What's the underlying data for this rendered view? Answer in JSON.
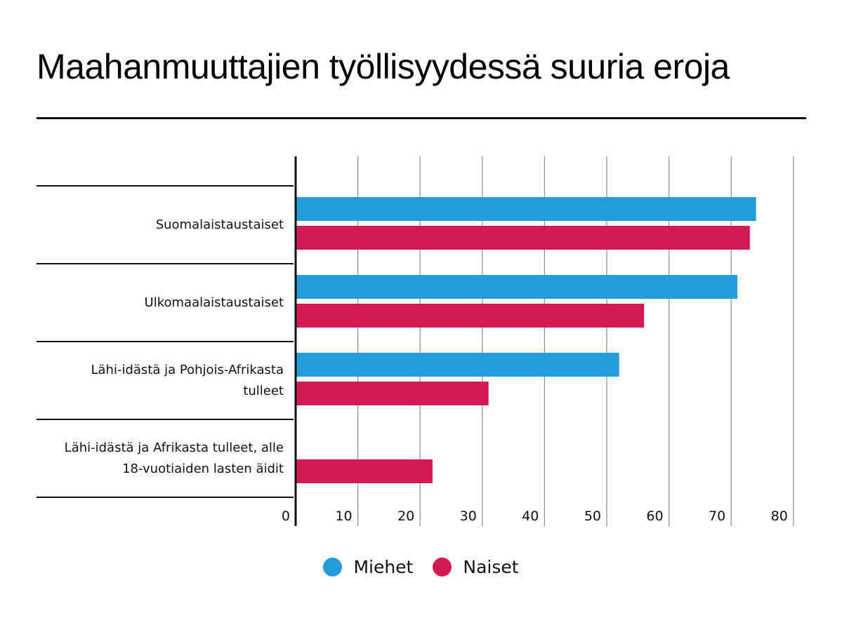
{
  "title": "Maahanmuuttajien työllisyydessä suuria eroja",
  "legend": [
    {
      "name": "Miehet",
      "color": "#269bdb"
    },
    {
      "name": "Naiset",
      "color": "#d31a55"
    }
  ],
  "chart_data": {
    "type": "bar",
    "orientation": "horizontal",
    "title": "Maahanmuuttajien työllisyydessä suuria eroja",
    "categories": [
      [
        "Suomalaistaustaiset"
      ],
      [
        "Ulkomaalaistaustaiset"
      ],
      [
        "Lähi-idästä ja Pohjois-Afrikasta",
        "tulleet"
      ],
      [
        "Lähi-idästä ja Afrikasta tulleet, alle",
        "18-vuotiaiden lasten äidit"
      ]
    ],
    "series": [
      {
        "name": "Miehet",
        "color": "#269bdb",
        "values": [
          74,
          71,
          52,
          null
        ]
      },
      {
        "name": "Naiset",
        "color": "#d31a55",
        "values": [
          73,
          56,
          31,
          22
        ]
      }
    ],
    "xlim": [
      0,
      80
    ],
    "xticks": [
      "0",
      "10",
      "20",
      "30",
      "40",
      "50",
      "60",
      "70",
      "80"
    ],
    "grid": true,
    "legend_position": "bottom-center"
  }
}
